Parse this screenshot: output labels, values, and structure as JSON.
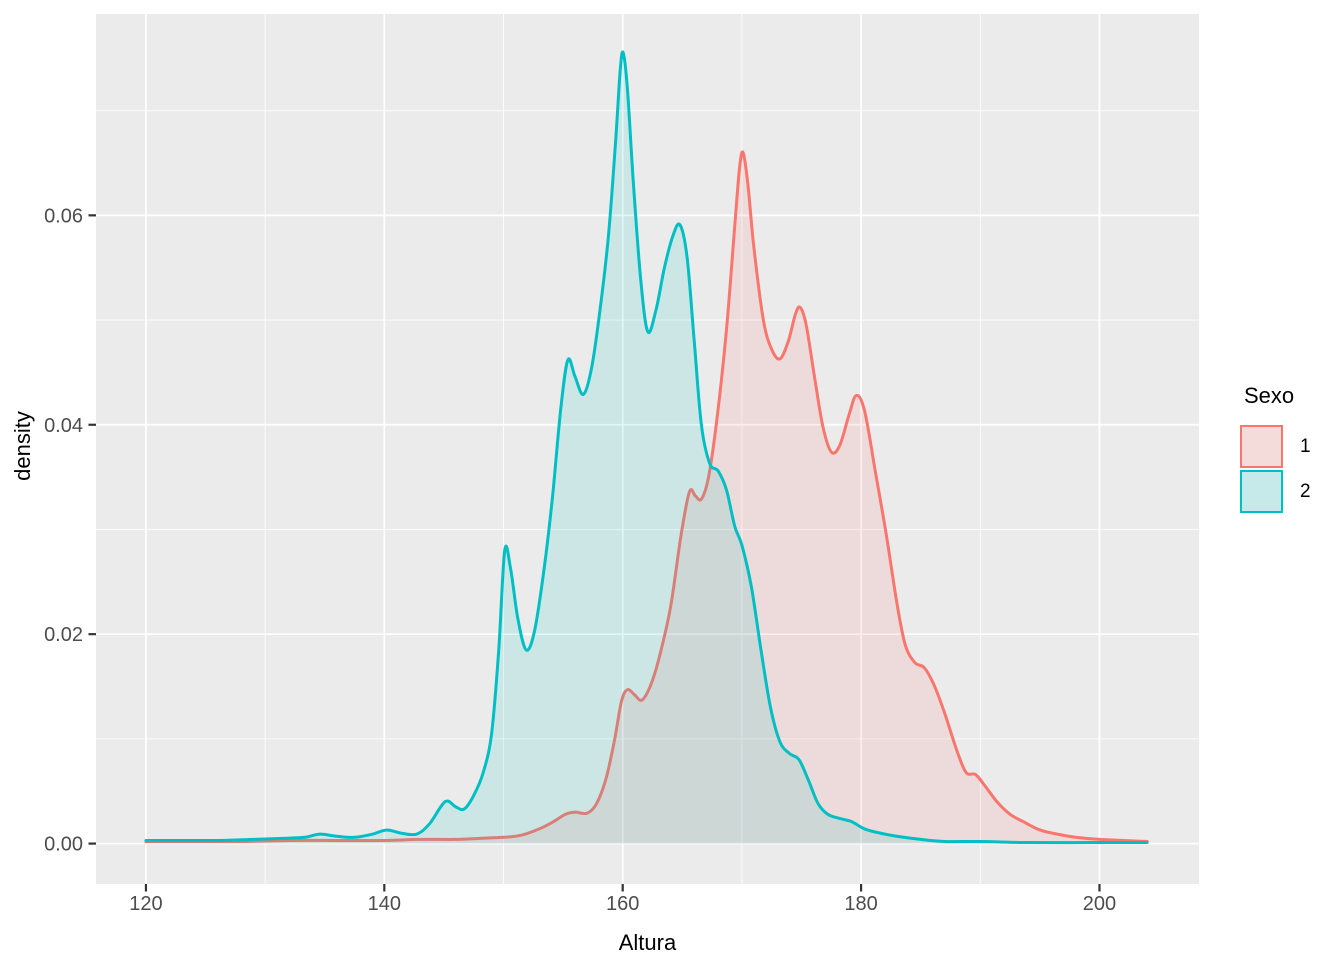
{
  "chart_data": {
    "type": "area",
    "title": "",
    "xlabel": "Altura",
    "ylabel": "density",
    "xlim": [
      115.81,
      208.35
    ],
    "ylim": [
      -0.00386,
      0.07923
    ],
    "x_major_ticks": [
      120,
      140,
      160,
      180,
      200
    ],
    "x_minor_ticks": [
      130,
      150,
      170,
      190
    ],
    "y_major_ticks": [
      0,
      0.02,
      0.04,
      0.06
    ],
    "y_minor_ticks": [
      0.01,
      0.03,
      0.05,
      0.07
    ],
    "y_tick_format_decimals": 2,
    "grid": "major and minor white gridlines on gray panel",
    "panel_bg": "#EBEBEB",
    "grid_color": "#FFFFFF",
    "tick_mark_color": "#333333",
    "tick_label_color": "#4D4D4D",
    "fill_opacity": 0.13,
    "stroke_width": 3,
    "legend": {
      "title": "Sexo",
      "position": "right",
      "key_bg": "#F2F2F2",
      "entries": [
        {
          "label": "1",
          "color": "#F8766D"
        },
        {
          "label": "2",
          "color": "#00BFC4"
        }
      ]
    },
    "series": [
      {
        "name": "1",
        "color": "#F8766D",
        "points": [
          [
            120,
            0.0002
          ],
          [
            124,
            0.0002
          ],
          [
            128,
            0.0002
          ],
          [
            132,
            0.0003
          ],
          [
            136,
            0.0003
          ],
          [
            140,
            0.0003
          ],
          [
            143,
            0.0004
          ],
          [
            146,
            0.0004
          ],
          [
            148,
            0.0005
          ],
          [
            150,
            0.0006
          ],
          [
            151.5,
            0.0008
          ],
          [
            153,
            0.0014
          ],
          [
            154.2,
            0.0021
          ],
          [
            155.2,
            0.0028
          ],
          [
            156,
            0.003
          ],
          [
            157,
            0.0029
          ],
          [
            157.8,
            0.0038
          ],
          [
            158.6,
            0.0062
          ],
          [
            159.3,
            0.0098
          ],
          [
            159.9,
            0.0136
          ],
          [
            160.4,
            0.0147
          ],
          [
            161,
            0.0142
          ],
          [
            161.6,
            0.0137
          ],
          [
            162.3,
            0.015
          ],
          [
            163,
            0.0175
          ],
          [
            164,
            0.0225
          ],
          [
            164.9,
            0.0295
          ],
          [
            165.6,
            0.0336
          ],
          [
            166.1,
            0.0332
          ],
          [
            166.6,
            0.0329
          ],
          [
            167.2,
            0.035
          ],
          [
            167.9,
            0.0405
          ],
          [
            168.7,
            0.049
          ],
          [
            169.4,
            0.059
          ],
          [
            169.8,
            0.0645
          ],
          [
            170.1,
            0.066
          ],
          [
            170.5,
            0.063
          ],
          [
            171,
            0.057
          ],
          [
            171.8,
            0.05
          ],
          [
            172.5,
            0.0472
          ],
          [
            173.2,
            0.0463
          ],
          [
            173.9,
            0.048
          ],
          [
            174.5,
            0.0506
          ],
          [
            174.9,
            0.0512
          ],
          [
            175.4,
            0.0495
          ],
          [
            176.1,
            0.0445
          ],
          [
            176.8,
            0.0398
          ],
          [
            177.5,
            0.0374
          ],
          [
            178.2,
            0.038
          ],
          [
            179,
            0.041
          ],
          [
            179.6,
            0.0428
          ],
          [
            180.3,
            0.0413
          ],
          [
            181.2,
            0.0355
          ],
          [
            182.1,
            0.0296
          ],
          [
            183,
            0.023
          ],
          [
            183.7,
            0.019
          ],
          [
            184.5,
            0.0173
          ],
          [
            185.3,
            0.0168
          ],
          [
            186.1,
            0.0152
          ],
          [
            187,
            0.0125
          ],
          [
            188,
            0.009
          ],
          [
            188.8,
            0.0068
          ],
          [
            189.6,
            0.0066
          ],
          [
            190.4,
            0.0055
          ],
          [
            191.4,
            0.004
          ],
          [
            192.5,
            0.0028
          ],
          [
            193.6,
            0.0021
          ],
          [
            195,
            0.0013
          ],
          [
            196.5,
            0.0009
          ],
          [
            198,
            0.0006
          ],
          [
            200,
            0.0004
          ],
          [
            202,
            0.0003
          ],
          [
            204,
            0.0002
          ]
        ]
      },
      {
        "name": "2",
        "color": "#00BFC4",
        "points": [
          [
            120,
            0.0003
          ],
          [
            123,
            0.0003
          ],
          [
            126,
            0.0003
          ],
          [
            129,
            0.0004
          ],
          [
            131.5,
            0.0005
          ],
          [
            133.3,
            0.0006
          ],
          [
            134.6,
            0.0009
          ],
          [
            136,
            0.0007
          ],
          [
            137.5,
            0.0006
          ],
          [
            139,
            0.0009
          ],
          [
            140.2,
            0.0013
          ],
          [
            141.4,
            0.001
          ],
          [
            142.7,
            0.0009
          ],
          [
            143.8,
            0.0019
          ],
          [
            145.1,
            0.004
          ],
          [
            146,
            0.0035
          ],
          [
            146.7,
            0.0033
          ],
          [
            147.5,
            0.0046
          ],
          [
            148.3,
            0.0068
          ],
          [
            149,
            0.0105
          ],
          [
            149.6,
            0.0185
          ],
          [
            150.1,
            0.028
          ],
          [
            150.6,
            0.0262
          ],
          [
            151.2,
            0.0215
          ],
          [
            151.9,
            0.0185
          ],
          [
            152.6,
            0.0203
          ],
          [
            153.4,
            0.0262
          ],
          [
            154.1,
            0.033
          ],
          [
            154.8,
            0.0415
          ],
          [
            155.4,
            0.0462
          ],
          [
            156,
            0.0446
          ],
          [
            156.7,
            0.0429
          ],
          [
            157.4,
            0.0455
          ],
          [
            158.1,
            0.051
          ],
          [
            158.8,
            0.058
          ],
          [
            159.4,
            0.067
          ],
          [
            159.8,
            0.074
          ],
          [
            160.05,
            0.0755
          ],
          [
            160.4,
            0.072
          ],
          [
            160.9,
            0.063
          ],
          [
            161.5,
            0.054
          ],
          [
            162.1,
            0.0489
          ],
          [
            162.8,
            0.051
          ],
          [
            163.5,
            0.055
          ],
          [
            164.2,
            0.058
          ],
          [
            164.8,
            0.0591
          ],
          [
            165.4,
            0.056
          ],
          [
            166,
            0.048
          ],
          [
            166.6,
            0.04
          ],
          [
            167.3,
            0.0363
          ],
          [
            168,
            0.0356
          ],
          [
            168.7,
            0.0338
          ],
          [
            169.4,
            0.0303
          ],
          [
            170,
            0.0285
          ],
          [
            170.8,
            0.0245
          ],
          [
            171.6,
            0.0185
          ],
          [
            172.4,
            0.013
          ],
          [
            173.2,
            0.0097
          ],
          [
            174,
            0.0086
          ],
          [
            174.8,
            0.008
          ],
          [
            175.6,
            0.006
          ],
          [
            176.4,
            0.0038
          ],
          [
            177.2,
            0.0028
          ],
          [
            178.2,
            0.0024
          ],
          [
            179.2,
            0.0021
          ],
          [
            180.3,
            0.0014
          ],
          [
            181.6,
            0.001
          ],
          [
            183,
            0.0007
          ],
          [
            185,
            0.0004
          ],
          [
            187,
            0.0002
          ],
          [
            190,
            0.0002
          ],
          [
            194,
            0.0001
          ],
          [
            199,
            0.0001
          ],
          [
            204,
            0.0001
          ]
        ]
      }
    ]
  }
}
